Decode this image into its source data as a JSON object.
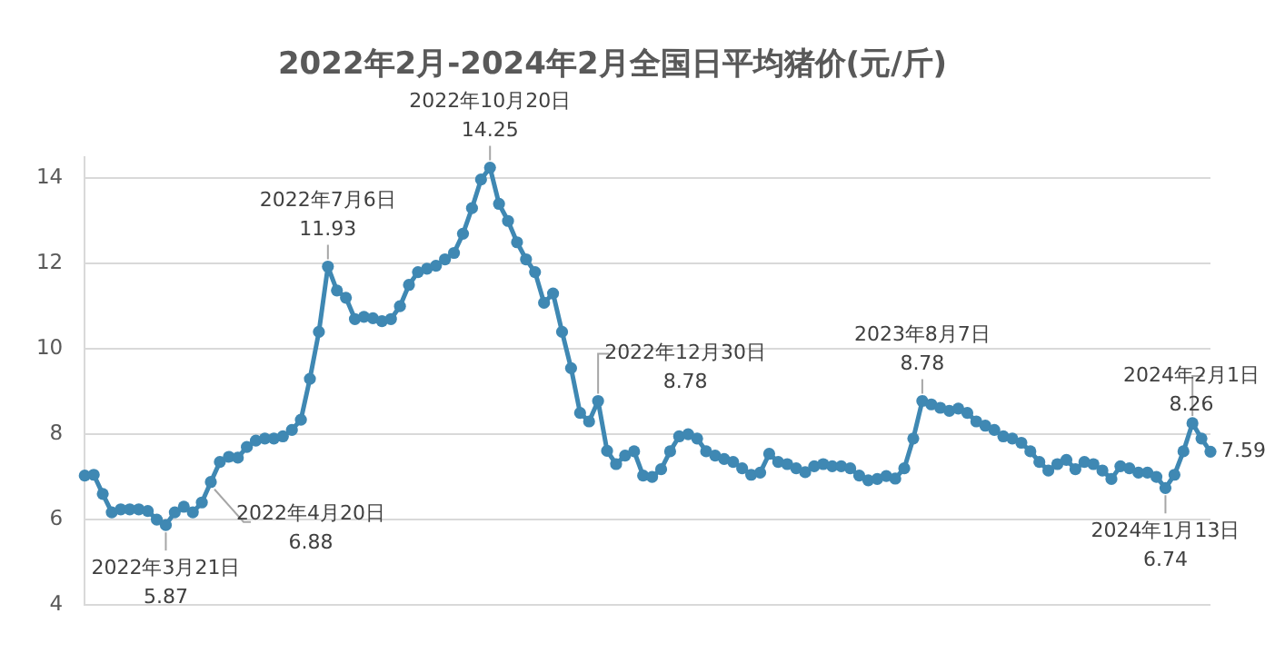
{
  "chart_data": {
    "type": "line",
    "title": "2022年2月-2024年2月全国日平均猪价(元/斤)",
    "categories": [
      null,
      null,
      null,
      null,
      null,
      null,
      null,
      null,
      null,
      null,
      null,
      null,
      null,
      null,
      null,
      null,
      null,
      null,
      null,
      null,
      null,
      null,
      null,
      null,
      null,
      null,
      null,
      null,
      null,
      null,
      null,
      null,
      null,
      null,
      null,
      null,
      null,
      null,
      null,
      null,
      null,
      null,
      null,
      null,
      null,
      null,
      null,
      null,
      null,
      null,
      null,
      null,
      null,
      null,
      null,
      null,
      null,
      null,
      null,
      null,
      null,
      null,
      null,
      null,
      null,
      null,
      null,
      null,
      null,
      null,
      null,
      null,
      null,
      null,
      null,
      null,
      null,
      null,
      null,
      null,
      null,
      null,
      null,
      null,
      null,
      null,
      null,
      null,
      null,
      null,
      null,
      null,
      null,
      null,
      null,
      null,
      null,
      null,
      null,
      null,
      null,
      null,
      null,
      null,
      null,
      null,
      null,
      null,
      null,
      null,
      null,
      null,
      null,
      null,
      null,
      null,
      null,
      null,
      null,
      null,
      null,
      null,
      null,
      null,
      null,
      null
    ],
    "series": [
      {
        "color": "#3f88b3",
        "values": [
          7.03,
          7.05,
          6.6,
          6.17,
          6.24,
          6.24,
          6.24,
          6.2,
          6.0,
          5.87,
          6.17,
          6.3,
          6.17,
          6.4,
          6.88,
          7.35,
          7.47,
          7.45,
          7.7,
          7.85,
          7.9,
          7.9,
          7.95,
          8.1,
          8.34,
          9.3,
          10.4,
          11.93,
          11.37,
          11.2,
          10.7,
          10.75,
          10.72,
          10.65,
          10.7,
          11.0,
          11.5,
          11.8,
          11.88,
          11.95,
          12.1,
          12.25,
          12.7,
          13.3,
          13.97,
          14.25,
          13.4,
          13.0,
          12.5,
          12.1,
          11.8,
          11.08,
          11.3,
          10.4,
          9.55,
          8.5,
          8.3,
          8.78,
          7.61,
          7.3,
          7.5,
          7.6,
          7.03,
          7.0,
          7.18,
          7.6,
          7.95,
          8.0,
          7.9,
          7.6,
          7.5,
          7.42,
          7.35,
          7.2,
          7.05,
          7.1,
          7.54,
          7.35,
          7.3,
          7.2,
          7.11,
          7.25,
          7.3,
          7.25,
          7.25,
          7.2,
          7.03,
          6.92,
          6.95,
          7.02,
          6.96,
          7.2,
          7.9,
          8.78,
          8.7,
          8.62,
          8.55,
          8.6,
          8.5,
          8.3,
          8.2,
          8.1,
          7.95,
          7.9,
          7.8,
          7.6,
          7.35,
          7.15,
          7.3,
          7.4,
          7.18,
          7.35,
          7.3,
          7.15,
          6.95,
          7.25,
          7.2,
          7.1,
          7.1,
          7.0,
          6.74,
          7.05,
          7.6,
          8.26,
          7.9,
          7.59
        ],
        "value_labels": [
          null,
          null,
          null,
          null,
          null,
          null,
          null,
          null,
          null,
          "2022年3月21日\n5.87",
          null,
          null,
          null,
          null,
          "2022年4月20日\n6.88",
          null,
          null,
          null,
          null,
          null,
          null,
          null,
          null,
          null,
          null,
          null,
          null,
          "2022年7月6日\n11.93",
          null,
          null,
          null,
          null,
          null,
          null,
          null,
          null,
          null,
          null,
          null,
          null,
          null,
          null,
          null,
          null,
          null,
          "2022年10月20日\n14.25",
          null,
          null,
          null,
          null,
          null,
          null,
          null,
          null,
          null,
          null,
          null,
          "2022年12月30日\n8.78",
          null,
          null,
          null,
          null,
          null,
          null,
          null,
          null,
          null,
          null,
          null,
          null,
          null,
          null,
          null,
          null,
          null,
          null,
          null,
          null,
          null,
          null,
          null,
          null,
          null,
          null,
          null,
          null,
          null,
          null,
          null,
          null,
          null,
          null,
          null,
          "2023年8月7日\n8.78",
          null,
          null,
          null,
          null,
          null,
          null,
          null,
          null,
          null,
          null,
          null,
          null,
          null,
          null,
          null,
          null,
          null,
          null,
          null,
          null,
          null,
          null,
          null,
          null,
          null,
          null,
          "2024年1月13日\n6.74",
          null,
          null,
          "2024年2月1日\n8.26",
          null,
          "7.59"
        ]
      }
    ],
    "ylim": [
      4,
      14.5
    ],
    "yticks": [
      4,
      6,
      8,
      10,
      12,
      14
    ],
    "grid": "y",
    "legend": false,
    "marker": "circle",
    "line_style": "solid"
  }
}
